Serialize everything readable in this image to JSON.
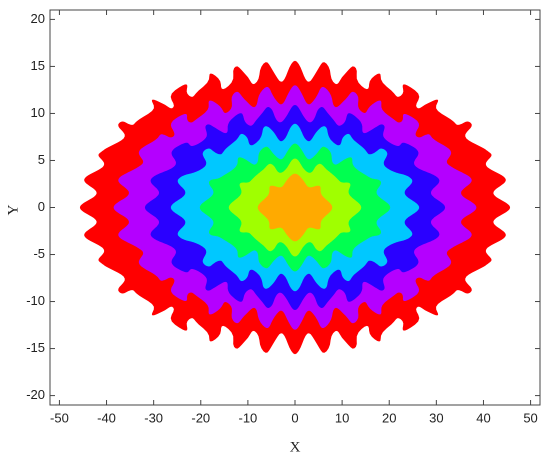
{
  "chart_data": {
    "type": "contour",
    "x_label": "X",
    "y_label": "Y",
    "xlim": [
      -52,
      52
    ],
    "ylim": [
      -21,
      21
    ],
    "xticks": [
      -50,
      -40,
      -30,
      -20,
      -10,
      0,
      10,
      20,
      30,
      40,
      50
    ],
    "yticks": [
      -20,
      -15,
      -10,
      -5,
      0,
      5,
      10,
      15,
      20
    ],
    "ripple_period": 6,
    "series": [
      {
        "color": "#ff0000",
        "x_radius": 44,
        "y_radius": 14.5,
        "ripple": 1.1
      },
      {
        "color": "#b400ff",
        "x_radius": 37,
        "y_radius": 12,
        "ripple": 1.0
      },
      {
        "color": "#2a00ff",
        "x_radius": 30.5,
        "y_radius": 10,
        "ripple": 0.9
      },
      {
        "color": "#00c8ff",
        "x_radius": 25,
        "y_radius": 8,
        "ripple": 0.9
      },
      {
        "color": "#00ff50",
        "x_radius": 19,
        "y_radius": 6,
        "ripple": 0.8
      },
      {
        "color": "#a0ff00",
        "x_radius": 13,
        "y_radius": 4.5,
        "ripple": 0.7
      },
      {
        "color": "#ffaa00",
        "x_radius": 7,
        "y_radius": 3,
        "ripple": 0.6
      }
    ]
  }
}
